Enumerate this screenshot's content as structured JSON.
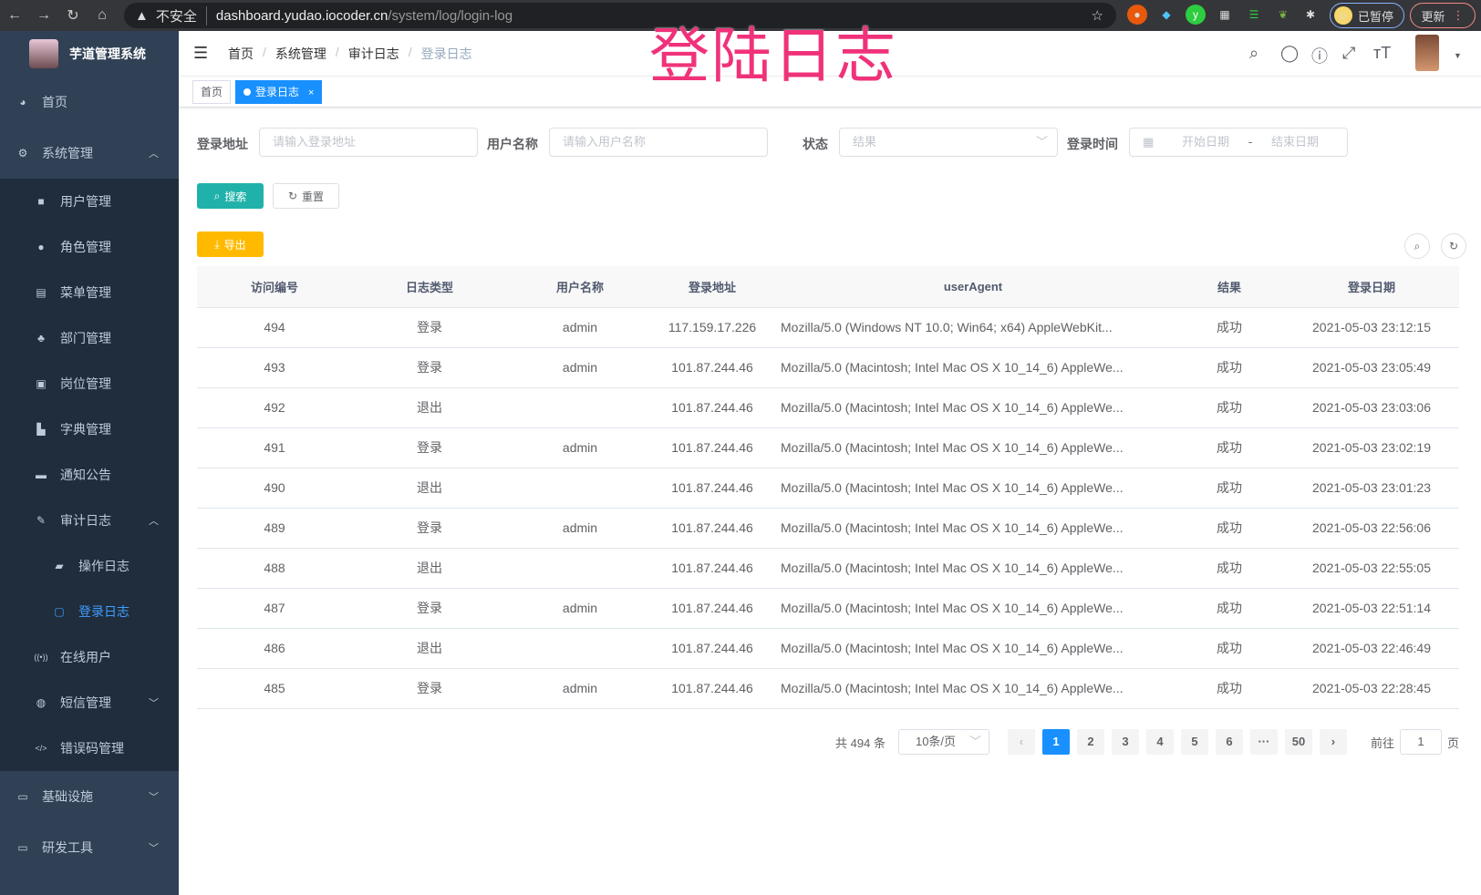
{
  "browser": {
    "insecure": "不安全",
    "host": "dashboard.yudao.iocoder.cn",
    "path": "/system/log/login-log",
    "paused": "已暂停",
    "update": "更新"
  },
  "app": {
    "title": "芋道管理系统"
  },
  "overlay_title": "登陆日志",
  "sidebar": {
    "home": "首页",
    "system": "系统管理",
    "system_items": [
      "用户管理",
      "角色管理",
      "菜单管理",
      "部门管理",
      "岗位管理",
      "字典管理",
      "通知公告"
    ],
    "audit": "审计日志",
    "audit_items": [
      "操作日志",
      "登录日志"
    ],
    "system_items2": [
      "在线用户",
      "短信管理",
      "错误码管理"
    ],
    "infra": "基础设施",
    "devtools": "研发工具"
  },
  "breadcrumb": [
    "首页",
    "系统管理",
    "审计日志",
    "登录日志"
  ],
  "tags": [
    "首页",
    "登录日志"
  ],
  "filters": {
    "address_label": "登录地址",
    "address_placeholder": "请输入登录地址",
    "username_label": "用户名称",
    "username_placeholder": "请输入用户名称",
    "status_label": "状态",
    "status_placeholder": "结果",
    "time_label": "登录时间",
    "start_placeholder": "开始日期",
    "end_placeholder": "结束日期",
    "range_sep": "-"
  },
  "buttons": {
    "search": "搜索",
    "reset": "重置",
    "export": "导出"
  },
  "colors": {
    "sidebar": "#304156",
    "accent": "#1890ff",
    "search": "#20b2aa",
    "export": "#ffba00"
  },
  "table": {
    "columns": [
      "访问编号",
      "日志类型",
      "用户名称",
      "登录地址",
      "userAgent",
      "结果",
      "登录日期"
    ],
    "rows": [
      [
        "494",
        "登录",
        "admin",
        "117.159.17.226",
        "Mozilla/5.0 (Windows NT 10.0; Win64; x64) AppleWebKit...",
        "成功",
        "2021-05-03 23:12:15"
      ],
      [
        "493",
        "登录",
        "admin",
        "101.87.244.46",
        "Mozilla/5.0 (Macintosh; Intel Mac OS X 10_14_6) AppleWe...",
        "成功",
        "2021-05-03 23:05:49"
      ],
      [
        "492",
        "退出",
        "",
        "101.87.244.46",
        "Mozilla/5.0 (Macintosh; Intel Mac OS X 10_14_6) AppleWe...",
        "成功",
        "2021-05-03 23:03:06"
      ],
      [
        "491",
        "登录",
        "admin",
        "101.87.244.46",
        "Mozilla/5.0 (Macintosh; Intel Mac OS X 10_14_6) AppleWe...",
        "成功",
        "2021-05-03 23:02:19"
      ],
      [
        "490",
        "退出",
        "",
        "101.87.244.46",
        "Mozilla/5.0 (Macintosh; Intel Mac OS X 10_14_6) AppleWe...",
        "成功",
        "2021-05-03 23:01:23"
      ],
      [
        "489",
        "登录",
        "admin",
        "101.87.244.46",
        "Mozilla/5.0 (Macintosh; Intel Mac OS X 10_14_6) AppleWe...",
        "成功",
        "2021-05-03 22:56:06"
      ],
      [
        "488",
        "退出",
        "",
        "101.87.244.46",
        "Mozilla/5.0 (Macintosh; Intel Mac OS X 10_14_6) AppleWe...",
        "成功",
        "2021-05-03 22:55:05"
      ],
      [
        "487",
        "登录",
        "admin",
        "101.87.244.46",
        "Mozilla/5.0 (Macintosh; Intel Mac OS X 10_14_6) AppleWe...",
        "成功",
        "2021-05-03 22:51:14"
      ],
      [
        "486",
        "退出",
        "",
        "101.87.244.46",
        "Mozilla/5.0 (Macintosh; Intel Mac OS X 10_14_6) AppleWe...",
        "成功",
        "2021-05-03 22:46:49"
      ],
      [
        "485",
        "登录",
        "admin",
        "101.87.244.46",
        "Mozilla/5.0 (Macintosh; Intel Mac OS X 10_14_6) AppleWe...",
        "成功",
        "2021-05-03 22:28:45"
      ]
    ]
  },
  "pagination": {
    "total": "共 494 条",
    "page_size": "10条/页",
    "pages": [
      "1",
      "2",
      "3",
      "4",
      "5",
      "6",
      "···",
      "50"
    ],
    "current": "1",
    "goto_label": "前往",
    "goto_value": "1",
    "goto_suffix": "页"
  }
}
